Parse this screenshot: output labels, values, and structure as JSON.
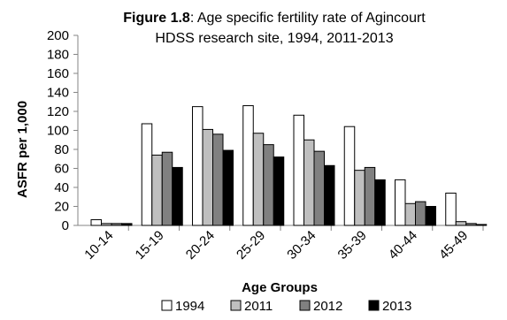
{
  "chart_data": {
    "type": "bar",
    "title_prefix": "Figure 1.8",
    "title_line1_rest": ": Age specific fertility rate of Agincourt",
    "title_line2": "HDSS research site, 1994, 2011-2013",
    "xlabel": "Age Groups",
    "ylabel": "ASFR per 1,000",
    "ylim": [
      0,
      200
    ],
    "ytick_step": 20,
    "yticks": [
      "0",
      "20",
      "40",
      "60",
      "80",
      "100",
      "120",
      "140",
      "160",
      "180",
      "200"
    ],
    "grid": false,
    "legend_position": "bottom",
    "categories": [
      "10-14",
      "15-19",
      "20-24",
      "25-29",
      "30-34",
      "35-39",
      "40-44",
      "45-49"
    ],
    "series": [
      {
        "name": "1994",
        "color": "#ffffff",
        "values": [
          6,
          107,
          125,
          126,
          116,
          104,
          48,
          34
        ]
      },
      {
        "name": "2011",
        "color": "#bfbfbf",
        "values": [
          2,
          74,
          101,
          97,
          90,
          58,
          23,
          4
        ]
      },
      {
        "name": "2012",
        "color": "#808080",
        "values": [
          2,
          77,
          96,
          85,
          78,
          61,
          25,
          2
        ]
      },
      {
        "name": "2013",
        "color": "#000000",
        "values": [
          2,
          61,
          79,
          72,
          63,
          48,
          20,
          1
        ]
      }
    ]
  }
}
